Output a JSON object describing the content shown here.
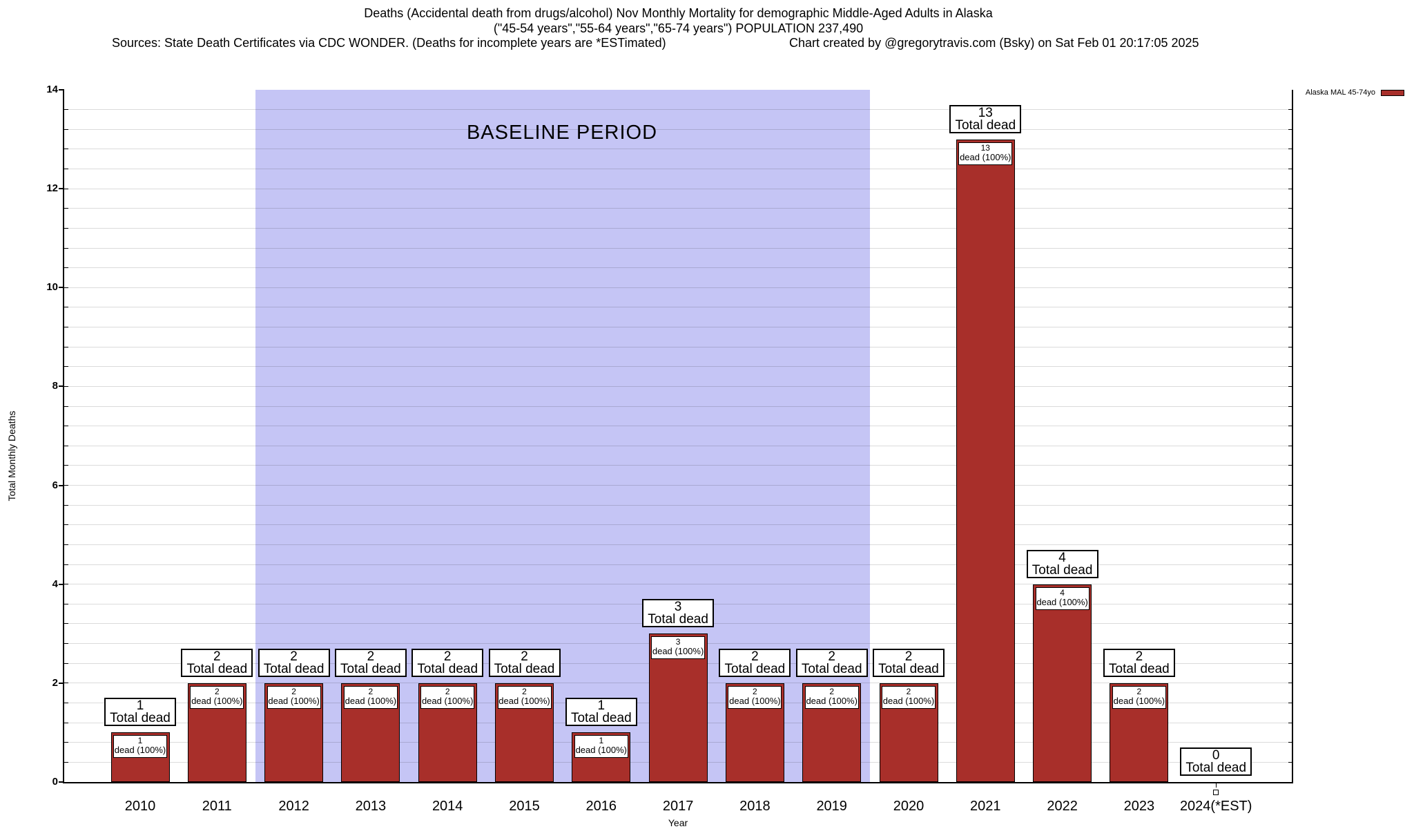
{
  "header": {
    "title_line1": "Deaths (Accidental death from drugs/alcohol) Nov Monthly Mortality for demographic Middle-Aged Adults in Alaska",
    "title_line2": "(\"45-54 years\",\"55-64 years\",\"65-74 years\") POPULATION 237,490",
    "sources": "Sources: State Death Certificates via CDC WONDER. (Deaths for incomplete years are *ESTimated)",
    "credit": "Chart created by @gregorytravis.com (Bsky) on Sat Feb 01 20:17:05 2025"
  },
  "legend": {
    "label": "Alaska MAL 45-74yo",
    "swatch_color": "#a82f2a"
  },
  "chart_data": {
    "type": "bar",
    "title": "Deaths (Accidental death from drugs/alcohol) Nov Monthly Mortality for demographic Middle-Aged Adults in Alaska (\"45-54 years\",\"55-64 years\",\"65-74 years\") POPULATION 237,490",
    "xlabel": "Year",
    "ylabel": "Total Monthly Deaths",
    "ylim": [
      0,
      14
    ],
    "ytick_step": 2,
    "grid_minor_step": 0.4,
    "grid": "on",
    "legend_position": "top-right",
    "series_name": "Alaska MAL 45-74yo",
    "bar_color": "#a82f2a",
    "categories": [
      "2010",
      "2011",
      "2012",
      "2013",
      "2014",
      "2015",
      "2016",
      "2017",
      "2018",
      "2019",
      "2020",
      "2021",
      "2022",
      "2023",
      "2024(*EST)"
    ],
    "values": [
      1,
      2,
      2,
      2,
      2,
      2,
      1,
      3,
      2,
      2,
      2,
      13,
      4,
      2,
      0
    ],
    "bar_top_label": "Total dead",
    "bar_inner_label": "dead (100%)",
    "baseline_band": {
      "label": "BASELINE PERIOD",
      "from": "2012",
      "to": "2019",
      "color": "#c5c5f5"
    }
  }
}
